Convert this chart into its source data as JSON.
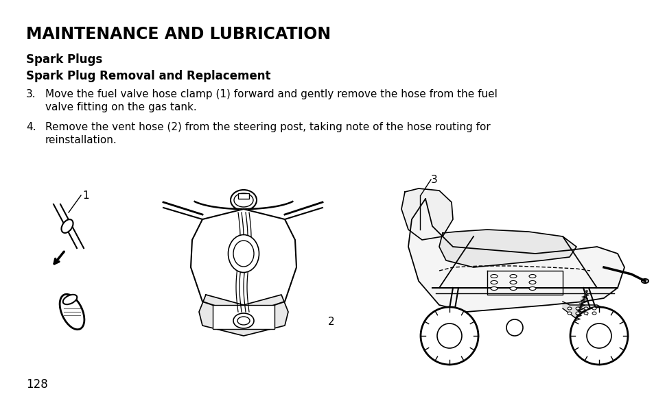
{
  "title": "MAINTENANCE AND LUBRICATION",
  "subtitle": "Spark Plugs",
  "section_header": "Spark Plug Removal and Replacement",
  "item3_num": "3.",
  "item3_line1": "Move the fuel valve hose clamp (1) forward and gently remove the hose from the fuel",
  "item3_line2": "valve fitting on the gas tank.",
  "item4_num": "4.",
  "item4_line1": "Remove the vent hose (2) from the steering post, taking note of the hose routing for",
  "item4_line2": "reinstallation.",
  "page_number": "128",
  "bg": "#ffffff",
  "fg": "#000000"
}
